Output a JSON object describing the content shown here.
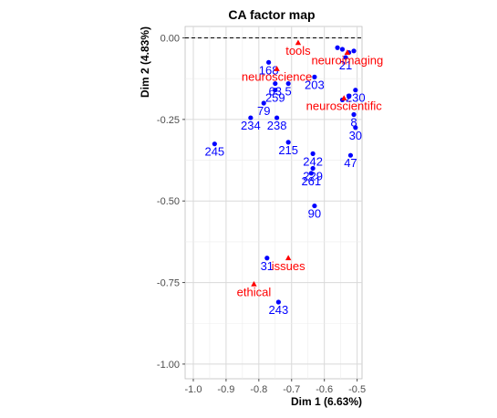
{
  "chart_data": {
    "type": "scatter",
    "title": "CA factor map",
    "xlabel": "Dim 1 (6.63%)",
    "ylabel": "Dim 2 (4.83%)",
    "xlim": [
      -1.025,
      -0.485
    ],
    "ylim": [
      -1.045,
      0.035
    ],
    "x_ticks": [
      -1.0,
      -0.9,
      -0.8,
      -0.7,
      -0.6,
      -0.5
    ],
    "x_tick_labels": [
      "-1.0",
      "-0.9",
      "-0.8",
      "-0.7",
      "-0.6",
      "-0.5"
    ],
    "y_ticks": [
      0.0,
      -0.25,
      -0.5,
      -0.75,
      -1.0
    ],
    "y_tick_labels": [
      "0.00",
      "-0.25",
      "-0.50",
      "-0.75",
      "-1.00"
    ],
    "grid": true,
    "reference_line_y": 0.0,
    "row_color": "#0000ff",
    "col_color": "#ff0000",
    "row_points": [
      {
        "x": -0.56,
        "y": -0.03,
        "label": ""
      },
      {
        "x": -0.545,
        "y": -0.035,
        "label": ""
      },
      {
        "x": -0.525,
        "y": -0.045,
        "label": ""
      },
      {
        "x": -0.51,
        "y": -0.04,
        "label": ""
      },
      {
        "x": -0.535,
        "y": -0.06,
        "label": "21"
      },
      {
        "x": -0.77,
        "y": -0.075,
        "label": "168"
      },
      {
        "x": -0.63,
        "y": -0.12,
        "label": "203"
      },
      {
        "x": -0.71,
        "y": -0.14,
        "label": "5"
      },
      {
        "x": -0.75,
        "y": -0.14,
        "label": "63"
      },
      {
        "x": -0.75,
        "y": -0.16,
        "label": "259"
      },
      {
        "x": -0.505,
        "y": -0.16,
        "label": "230"
      },
      {
        "x": -0.525,
        "y": -0.18,
        "label": ""
      },
      {
        "x": -0.545,
        "y": -0.19,
        "label": ""
      },
      {
        "x": -0.785,
        "y": -0.2,
        "label": "79"
      },
      {
        "x": -0.51,
        "y": -0.235,
        "label": "8"
      },
      {
        "x": -0.825,
        "y": -0.245,
        "label": "234"
      },
      {
        "x": -0.745,
        "y": -0.245,
        "label": "238"
      },
      {
        "x": -0.505,
        "y": -0.275,
        "label": "30"
      },
      {
        "x": -0.935,
        "y": -0.325,
        "label": "245"
      },
      {
        "x": -0.71,
        "y": -0.32,
        "label": "215"
      },
      {
        "x": -0.635,
        "y": -0.355,
        "label": "242"
      },
      {
        "x": -0.52,
        "y": -0.36,
        "label": "47"
      },
      {
        "x": -0.635,
        "y": -0.4,
        "label": "229"
      },
      {
        "x": -0.64,
        "y": -0.415,
        "label": "261"
      },
      {
        "x": -0.63,
        "y": -0.515,
        "label": "90"
      },
      {
        "x": -0.775,
        "y": -0.675,
        "label": "31"
      },
      {
        "x": -0.74,
        "y": -0.81,
        "label": "243"
      }
    ],
    "col_points": [
      {
        "x": -0.68,
        "y": -0.015,
        "label": "tools"
      },
      {
        "x": -0.53,
        "y": -0.045,
        "label": "neuroimaging"
      },
      {
        "x": -0.745,
        "y": -0.095,
        "label": "neuroscience"
      },
      {
        "x": -0.54,
        "y": -0.185,
        "label": "neuroscientific"
      },
      {
        "x": -0.71,
        "y": -0.675,
        "label": "issues"
      },
      {
        "x": -0.815,
        "y": -0.755,
        "label": "ethical"
      }
    ]
  }
}
